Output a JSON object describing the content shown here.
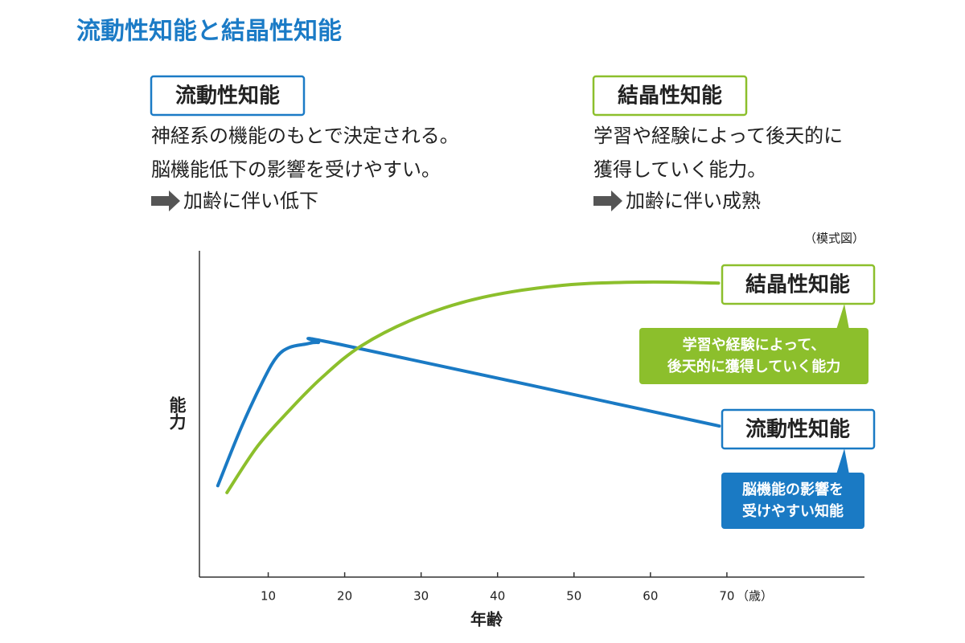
{
  "chart_data": {
    "type": "line",
    "title": "流動性知能と結晶性知能",
    "panels": [
      {
        "title": "流動性知能",
        "lines": [
          "神経系の機能のもとで決定される。",
          "脳機能低下の影響を受けやすい。"
        ],
        "result": "加齢に伴い低下",
        "color": "#1b7bc6"
      },
      {
        "title": "結晶性知能",
        "lines": [
          "学習や経験によって後天的に",
          "獲得していく能力。"
        ],
        "result": "加齢に伴い成熟",
        "color": "#8cbf2c"
      }
    ],
    "note": "（模式図）",
    "ylabel": "能力",
    "xlabel": "年齢",
    "xunit": "（歳）",
    "xlim": [
      1,
      88
    ],
    "xticks": [
      10,
      20,
      30,
      40,
      50,
      60,
      70
    ],
    "ylim": [
      0,
      100
    ],
    "series": [
      {
        "name": "流動性知能",
        "color": "#1a7ac4",
        "callout": [
          "脳機能の影響を",
          "受けやすい知能"
        ],
        "x": [
          3.4,
          6.5,
          9.5,
          11.2,
          12.8,
          14.9,
          16.5,
          20,
          69
        ],
        "values": [
          28,
          46,
          61,
          67.7,
          70.4,
          71.4,
          71.9,
          71,
          46.3
        ]
      },
      {
        "name": "結晶性知能",
        "color": "#8cbf2c",
        "callout": [
          "学習や経験によって、",
          "後天的に獲得していく能力"
        ],
        "x": [
          4.6,
          8.6,
          12.8,
          17,
          22.2,
          29.6,
          38,
          48.5,
          59.1,
          68.9
        ],
        "values": [
          25.9,
          40.1,
          51.2,
          61.1,
          70.9,
          79.6,
          85.7,
          89.4,
          90.4,
          90.1
        ]
      }
    ]
  }
}
